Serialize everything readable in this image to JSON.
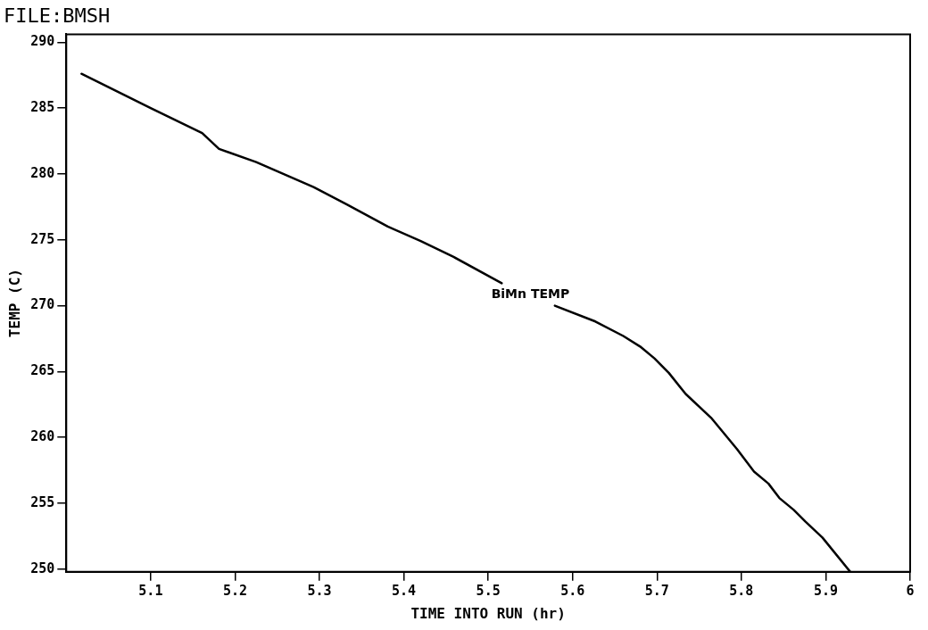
{
  "chart_data": {
    "type": "line",
    "title": "FILE:BMSH",
    "xlabel": "TIME INTO RUN (hr)",
    "ylabel": "TEMP (C)",
    "x": [
      5.018,
      5.1,
      5.161,
      5.181,
      5.225,
      5.293,
      5.332,
      5.381,
      5.42,
      5.459,
      5.516,
      5.55,
      5.579,
      5.627,
      5.66,
      5.68,
      5.697,
      5.714,
      5.734,
      5.764,
      5.795,
      5.815,
      5.832,
      5.845,
      5.862,
      5.876,
      5.896,
      5.929
    ],
    "series": [
      {
        "name": "BiMn TEMP",
        "color": "#000000",
        "values": [
          287.6,
          285.0,
          283.1,
          281.9,
          280.9,
          279.0,
          277.7,
          276.0,
          274.9,
          273.7,
          271.7,
          null,
          270.0,
          268.8,
          267.7,
          266.9,
          266.0,
          264.9,
          263.3,
          261.5,
          259.1,
          257.4,
          256.5,
          255.4,
          254.5,
          253.6,
          252.4,
          249.8
        ]
      }
    ],
    "xlim": [
      5.0,
      6.0
    ],
    "xticks": [
      5.1,
      5.2,
      5.3,
      5.4,
      5.5,
      5.6,
      5.7,
      5.8,
      5.9,
      6
    ],
    "ylim": [
      249.8,
      290.6
    ],
    "yticks": [
      250,
      255,
      260,
      265,
      270,
      275,
      280,
      285,
      290
    ],
    "grid": false,
    "legend": false,
    "marker": "none",
    "line_style": "solid"
  }
}
